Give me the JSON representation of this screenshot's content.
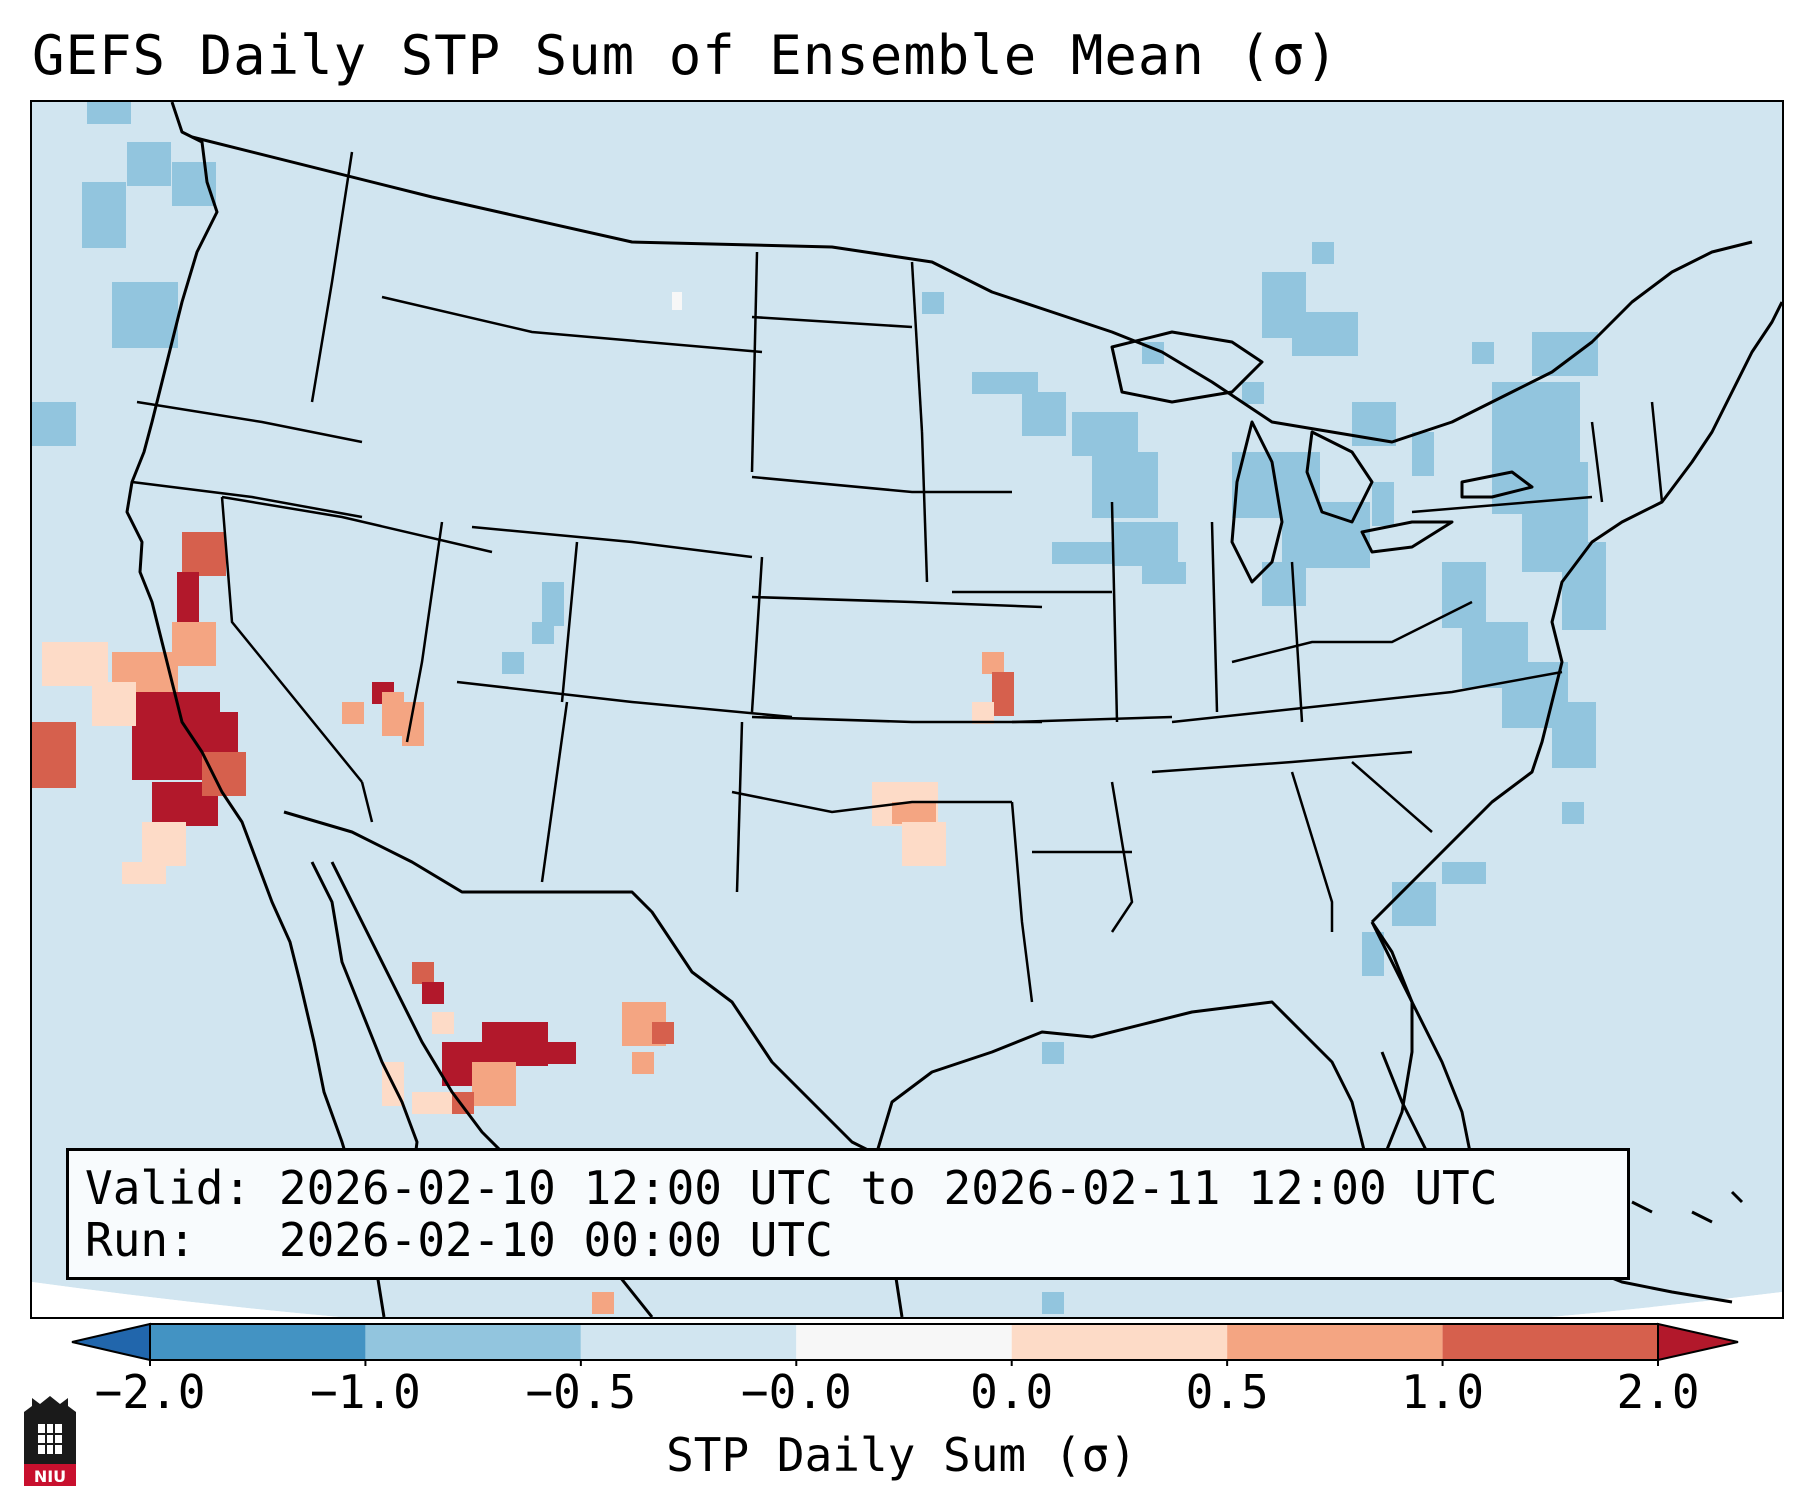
{
  "title": "GEFS Daily STP Sum of Ensemble Mean (σ)",
  "info": {
    "valid_label": "Valid:",
    "valid_text": "2026-02-10 12:00 UTC to 2026-02-11 12:00 UTC",
    "run_label": "Run:",
    "run_text": "2026-02-10 00:00 UTC"
  },
  "colorbar": {
    "label": "STP Daily Sum (σ)",
    "ticks": [
      "−2.0",
      "−1.0",
      "−0.5",
      "−0.0",
      "0.0",
      "0.5",
      "1.0",
      "2.0"
    ],
    "bins": [
      {
        "from": "−2.0",
        "to": "−1.0",
        "color": "#4393c3"
      },
      {
        "from": "−1.0",
        "to": "−0.5",
        "color": "#92c5de"
      },
      {
        "from": "−0.5",
        "to": "−0.0",
        "color": "#d1e5f0"
      },
      {
        "from": "−0.0",
        "to": "0.0",
        "color": "#f7f7f7"
      },
      {
        "from": "0.0",
        "to": "0.5",
        "color": "#fddbc7"
      },
      {
        "from": "0.5",
        "to": "1.0",
        "color": "#f4a582"
      },
      {
        "from": "1.0",
        "to": "2.0",
        "color": "#d6604d"
      }
    ],
    "under_color": "#2166ac",
    "over_color": "#b2182b"
  },
  "map": {
    "background_color": "#d1e5f0",
    "land_line_color": "#000000"
  },
  "logo": {
    "text": "NIU"
  }
}
